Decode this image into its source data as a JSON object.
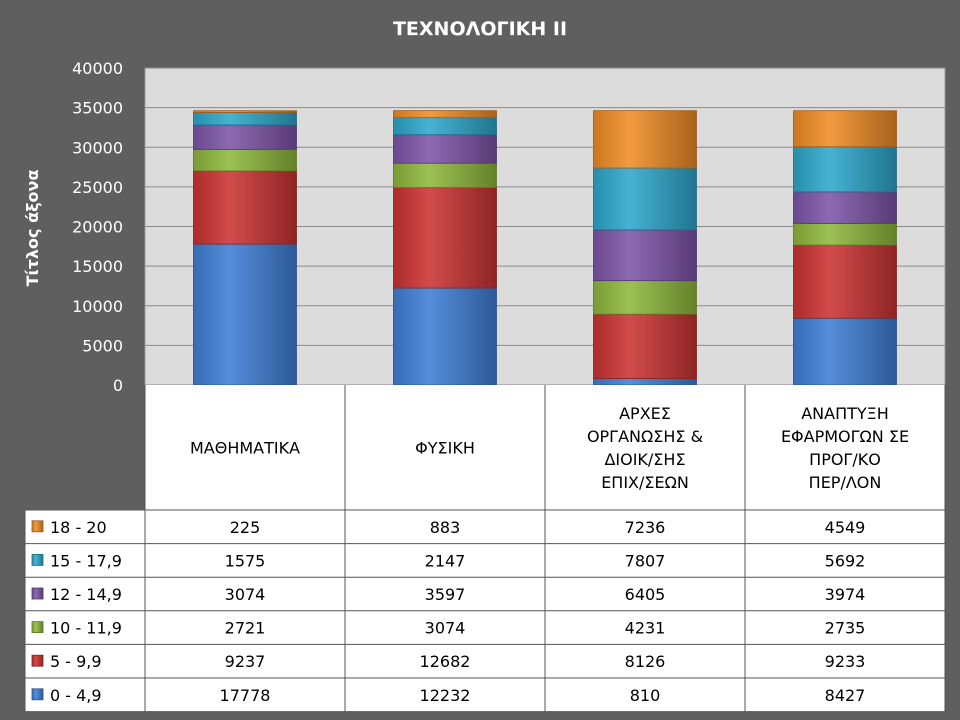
{
  "chart_data": {
    "type": "bar",
    "stacked": true,
    "title": "ΤΕΧΝΟΛΟΓΙΚΗ ΙΙ",
    "ylabel": "Τίτλος άξονα",
    "xlabel": "",
    "ylim": [
      0,
      40000
    ],
    "yticks": [
      0,
      5000,
      10000,
      15000,
      20000,
      25000,
      30000,
      35000,
      40000
    ],
    "grid": true,
    "legend": "data-table-left",
    "categories": [
      [
        "ΜΑΘΗΜΑΤΙΚΑ"
      ],
      [
        "ΦΥΣΙΚΗ"
      ],
      [
        "ΑΡΧΕΣ",
        "ΟΡΓΑΝΩΣΗΣ &",
        "ΔΙΟΙΚ/ΣΗΣ",
        "ΕΠΙΧ/ΣΕΩΝ"
      ],
      [
        "ΑΝΑΠΤΥΞΗ",
        "ΕΦΑΡΜΟΓΩΝ ΣΕ",
        "ΠΡΟΓ/ΚΟ",
        "ΠΕΡ/ΛΟΝ"
      ]
    ],
    "series": [
      {
        "name": "0  -  4,9",
        "color": "#3f7fd6",
        "values": [
          17778,
          12232,
          810,
          8427
        ]
      },
      {
        "name": "5  - 9,9",
        "color": "#cc3333",
        "values": [
          9237,
          12682,
          8126,
          9233
        ]
      },
      {
        "name": "10 - 11,9",
        "color": "#8fb83c",
        "values": [
          2721,
          3074,
          4231,
          2735
        ]
      },
      {
        "name": "12  - 14,9",
        "color": "#7d55a8",
        "values": [
          3074,
          3597,
          6405,
          3974
        ]
      },
      {
        "name": "15  - 17,9",
        "color": "#2ea7cc",
        "values": [
          1575,
          2147,
          7807,
          5692
        ]
      },
      {
        "name": "18  - 20",
        "color": "#f08c26",
        "values": [
          225,
          883,
          7236,
          4549
        ]
      }
    ]
  }
}
